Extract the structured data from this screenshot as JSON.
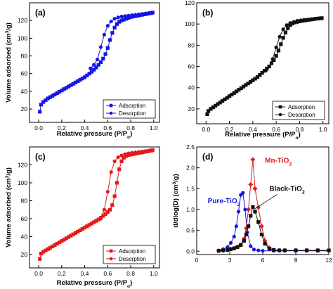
{
  "chart_data": [
    {
      "panel": "(a)",
      "type": "line",
      "xlabel": "Relative pressure (P/Po)",
      "ylabel": "Volume adsorbed (cm3/g)",
      "xlim": [
        -0.08,
        1.05
      ],
      "ylim": [
        5,
        140
      ],
      "xticks": [
        "0.0",
        "0.2",
        "0.4",
        "0.6",
        "0.8",
        "1.0"
      ],
      "yticks": [
        "20",
        "40",
        "60",
        "80",
        "100",
        "120"
      ],
      "color": "#1515e6",
      "legend_position": "bottom-right",
      "series": [
        {
          "name": "Adsorption",
          "marker": "square",
          "x": [
            0.01,
            0.02,
            0.04,
            0.06,
            0.08,
            0.1,
            0.12,
            0.14,
            0.16,
            0.18,
            0.2,
            0.22,
            0.24,
            0.26,
            0.28,
            0.3,
            0.32,
            0.34,
            0.36,
            0.38,
            0.4,
            0.42,
            0.44,
            0.46,
            0.48,
            0.5,
            0.52,
            0.54,
            0.56,
            0.58,
            0.6,
            0.62,
            0.64,
            0.66,
            0.68,
            0.7,
            0.72,
            0.74,
            0.76,
            0.78,
            0.8,
            0.82,
            0.84,
            0.86,
            0.88,
            0.9,
            0.92,
            0.94,
            0.96,
            0.98,
            0.99
          ],
          "y": [
            17,
            25,
            28,
            30,
            32,
            33.5,
            35,
            36.5,
            38,
            39.5,
            41,
            42.5,
            44,
            45.5,
            47,
            48.5,
            50,
            51.5,
            53,
            54.5,
            56,
            58,
            60,
            62,
            64.5,
            67,
            70,
            73,
            77,
            82,
            89,
            98,
            106,
            112,
            116,
            118.5,
            120,
            121,
            122,
            123,
            124,
            124.5,
            125,
            125.5,
            126,
            126.5,
            127,
            127.5,
            128,
            128.5,
            129
          ]
        },
        {
          "name": "Desorption",
          "marker": "circle",
          "x": [
            0.99,
            0.96,
            0.93,
            0.9,
            0.87,
            0.84,
            0.81,
            0.78,
            0.75,
            0.72,
            0.69,
            0.66,
            0.63,
            0.6,
            0.57,
            0.54,
            0.51,
            0.48,
            0.45
          ],
          "y": [
            129,
            128.5,
            128,
            127.5,
            127,
            126.5,
            126,
            125.5,
            125,
            124.5,
            123.5,
            122,
            119,
            114,
            104,
            90,
            76,
            70,
            66
          ]
        }
      ]
    },
    {
      "panel": "(b)",
      "type": "line",
      "xlabel": "Relative pressure (P/Po)",
      "ylabel": "",
      "xlim": [
        -0.08,
        1.05
      ],
      "ylim": [
        6,
        120
      ],
      "xticks": [
        "0.0",
        "0.2",
        "0.4",
        "0.6",
        "0.8",
        "1.0"
      ],
      "yticks": [
        "20",
        "40",
        "60",
        "80",
        "100",
        "120"
      ],
      "color": "#111111",
      "legend_position": "bottom-right",
      "series": [
        {
          "name": "Adsorption",
          "marker": "square",
          "x": [
            0.01,
            0.02,
            0.04,
            0.06,
            0.08,
            0.1,
            0.12,
            0.14,
            0.16,
            0.18,
            0.2,
            0.22,
            0.24,
            0.26,
            0.28,
            0.3,
            0.32,
            0.34,
            0.36,
            0.38,
            0.4,
            0.42,
            0.44,
            0.46,
            0.48,
            0.5,
            0.52,
            0.54,
            0.56,
            0.58,
            0.6,
            0.62,
            0.64,
            0.66,
            0.68,
            0.7,
            0.72,
            0.74,
            0.76,
            0.78,
            0.8,
            0.82,
            0.84,
            0.86,
            0.88,
            0.9,
            0.92,
            0.94,
            0.96,
            0.98,
            0.99
          ],
          "y": [
            15,
            18,
            20,
            21.5,
            23,
            24.5,
            26,
            27.5,
            29,
            30.5,
            32,
            33.5,
            35,
            36.5,
            38,
            39.5,
            41,
            42.5,
            44,
            45.5,
            47,
            48.5,
            50,
            52,
            54,
            56,
            58,
            60,
            63,
            66,
            70,
            75,
            81,
            87,
            92,
            96,
            99,
            100.5,
            101.5,
            102,
            102.5,
            103,
            103.3,
            103.6,
            104,
            104.3,
            104.6,
            105,
            105.2,
            105.4,
            105.5
          ]
        },
        {
          "name": "Desorption",
          "marker": "circle",
          "x": [
            0.99,
            0.96,
            0.93,
            0.9,
            0.87,
            0.84,
            0.81,
            0.78,
            0.75,
            0.72,
            0.69,
            0.66,
            0.63,
            0.6,
            0.57,
            0.54,
            0.51
          ],
          "y": [
            105.5,
            105.2,
            105,
            104.6,
            104.3,
            104,
            103.5,
            103,
            102,
            101,
            99,
            95,
            88,
            78,
            67,
            60,
            56
          ]
        }
      ]
    },
    {
      "panel": "(c)",
      "type": "line",
      "xlabel": "Relative pressure (P/Po)",
      "ylabel": "Volume adsorbed (cm3/g)",
      "xlim": [
        -0.08,
        1.05
      ],
      "ylim": [
        5,
        140
      ],
      "xticks": [
        "0.0",
        "0.2",
        "0.4",
        "0.6",
        "0.8",
        "1.0"
      ],
      "yticks": [
        "20",
        "40",
        "60",
        "80",
        "100",
        "120"
      ],
      "color": "#e31a1a",
      "legend_position": "bottom-right",
      "series": [
        {
          "name": "Adsorption",
          "marker": "square",
          "x": [
            0.01,
            0.02,
            0.04,
            0.06,
            0.08,
            0.1,
            0.12,
            0.14,
            0.16,
            0.18,
            0.2,
            0.22,
            0.24,
            0.26,
            0.28,
            0.3,
            0.32,
            0.34,
            0.36,
            0.38,
            0.4,
            0.42,
            0.44,
            0.46,
            0.48,
            0.5,
            0.52,
            0.54,
            0.56,
            0.58,
            0.6,
            0.62,
            0.64,
            0.66,
            0.68,
            0.7,
            0.72,
            0.74,
            0.76,
            0.78,
            0.8,
            0.82,
            0.84,
            0.86,
            0.88,
            0.9,
            0.92,
            0.94,
            0.96,
            0.98,
            0.99
          ],
          "y": [
            15,
            21,
            23,
            24.5,
            26,
            27.5,
            29,
            30.5,
            32,
            33.5,
            35,
            36.5,
            38,
            39.5,
            41,
            42.5,
            44,
            45.5,
            47,
            48.5,
            50,
            51.5,
            53,
            54.5,
            56,
            57.5,
            59,
            61,
            63,
            65,
            67.5,
            70,
            75,
            85,
            100,
            115,
            124,
            128,
            130,
            131,
            131.5,
            132,
            132.5,
            133,
            133.5,
            134,
            134.5,
            135,
            135.5,
            136,
            136.5
          ]
        },
        {
          "name": "Desorption",
          "marker": "circle",
          "x": [
            0.99,
            0.96,
            0.93,
            0.9,
            0.87,
            0.84,
            0.81,
            0.78,
            0.75,
            0.72,
            0.69,
            0.66,
            0.63,
            0.6,
            0.57,
            0.54
          ],
          "y": [
            136.5,
            136,
            135.5,
            135,
            134.5,
            134,
            133.5,
            133,
            132,
            130.5,
            128.5,
            124,
            112,
            90,
            70,
            60
          ]
        }
      ]
    },
    {
      "panel": "(d)",
      "type": "line",
      "xlabel": "",
      "ylabel": "d/dlog(D) (cm3/g)",
      "xlim": [
        0,
        12
      ],
      "ylim": [
        -0.08,
        2.5
      ],
      "xticks": [
        "0",
        "3",
        "6",
        "9",
        "12"
      ],
      "yticks": [
        "0.0",
        "0.5",
        "1.0",
        "1.5",
        "2.0",
        "2.5"
      ],
      "legend_position": "inline labels",
      "series": [
        {
          "name": "Pure-TiO2",
          "color": "#1515e6",
          "marker": "circle",
          "x": [
            2.0,
            2.4,
            2.8,
            3.1,
            3.4,
            3.6,
            3.8,
            4.0,
            4.2,
            4.4,
            4.6,
            4.9,
            5.2,
            5.6,
            6.0,
            7.0,
            8.0,
            9.0,
            10.0,
            11.0,
            12.0
          ],
          "y": [
            0.02,
            0.05,
            0.1,
            0.2,
            0.35,
            0.6,
            0.95,
            1.35,
            1.4,
            1.0,
            0.45,
            0.12,
            0.04,
            0.02,
            0.01,
            0.01,
            0.01,
            0.01,
            0.01,
            0.01,
            0.01
          ]
        },
        {
          "name": "Mn-TiO2",
          "color": "#e31a1a",
          "marker": "diamond",
          "x": [
            2.0,
            2.4,
            2.8,
            3.1,
            3.4,
            3.7,
            4.0,
            4.3,
            4.5,
            4.7,
            4.9,
            5.1,
            5.3,
            5.6,
            5.9,
            6.2,
            6.6,
            7.0,
            7.5,
            8.0,
            9.0,
            10.0,
            11.0,
            12.0
          ],
          "y": [
            0.01,
            0.02,
            0.03,
            0.05,
            0.07,
            0.1,
            0.15,
            0.3,
            0.55,
            1.0,
            1.6,
            2.2,
            1.5,
            1.05,
            0.6,
            0.25,
            0.08,
            0.03,
            0.02,
            0.02,
            0.02,
            0.02,
            0.02,
            0.02
          ]
        },
        {
          "name": "Black-TiO2",
          "color": "#111111",
          "marker": "square",
          "x": [
            2.0,
            2.4,
            2.8,
            3.1,
            3.4,
            3.7,
            4.0,
            4.3,
            4.5,
            4.7,
            4.9,
            5.1,
            5.3,
            5.6,
            5.9,
            6.2,
            6.6,
            7.0,
            7.5,
            8.0,
            9.0,
            10.0,
            11.0,
            12.0
          ],
          "y": [
            0.01,
            0.02,
            0.03,
            0.05,
            0.07,
            0.1,
            0.15,
            0.25,
            0.4,
            0.6,
            0.85,
            1.06,
            0.95,
            0.7,
            0.4,
            0.18,
            0.06,
            0.03,
            0.02,
            0.02,
            0.02,
            0.02,
            0.02,
            0.02
          ]
        }
      ],
      "annotations": [
        {
          "text": "Pure-TiO2",
          "color": "#1515e6"
        },
        {
          "text": "Mn-TiO2",
          "color": "#e31a1a"
        },
        {
          "text": "Black-TiO2",
          "color": "#111111"
        }
      ]
    }
  ]
}
